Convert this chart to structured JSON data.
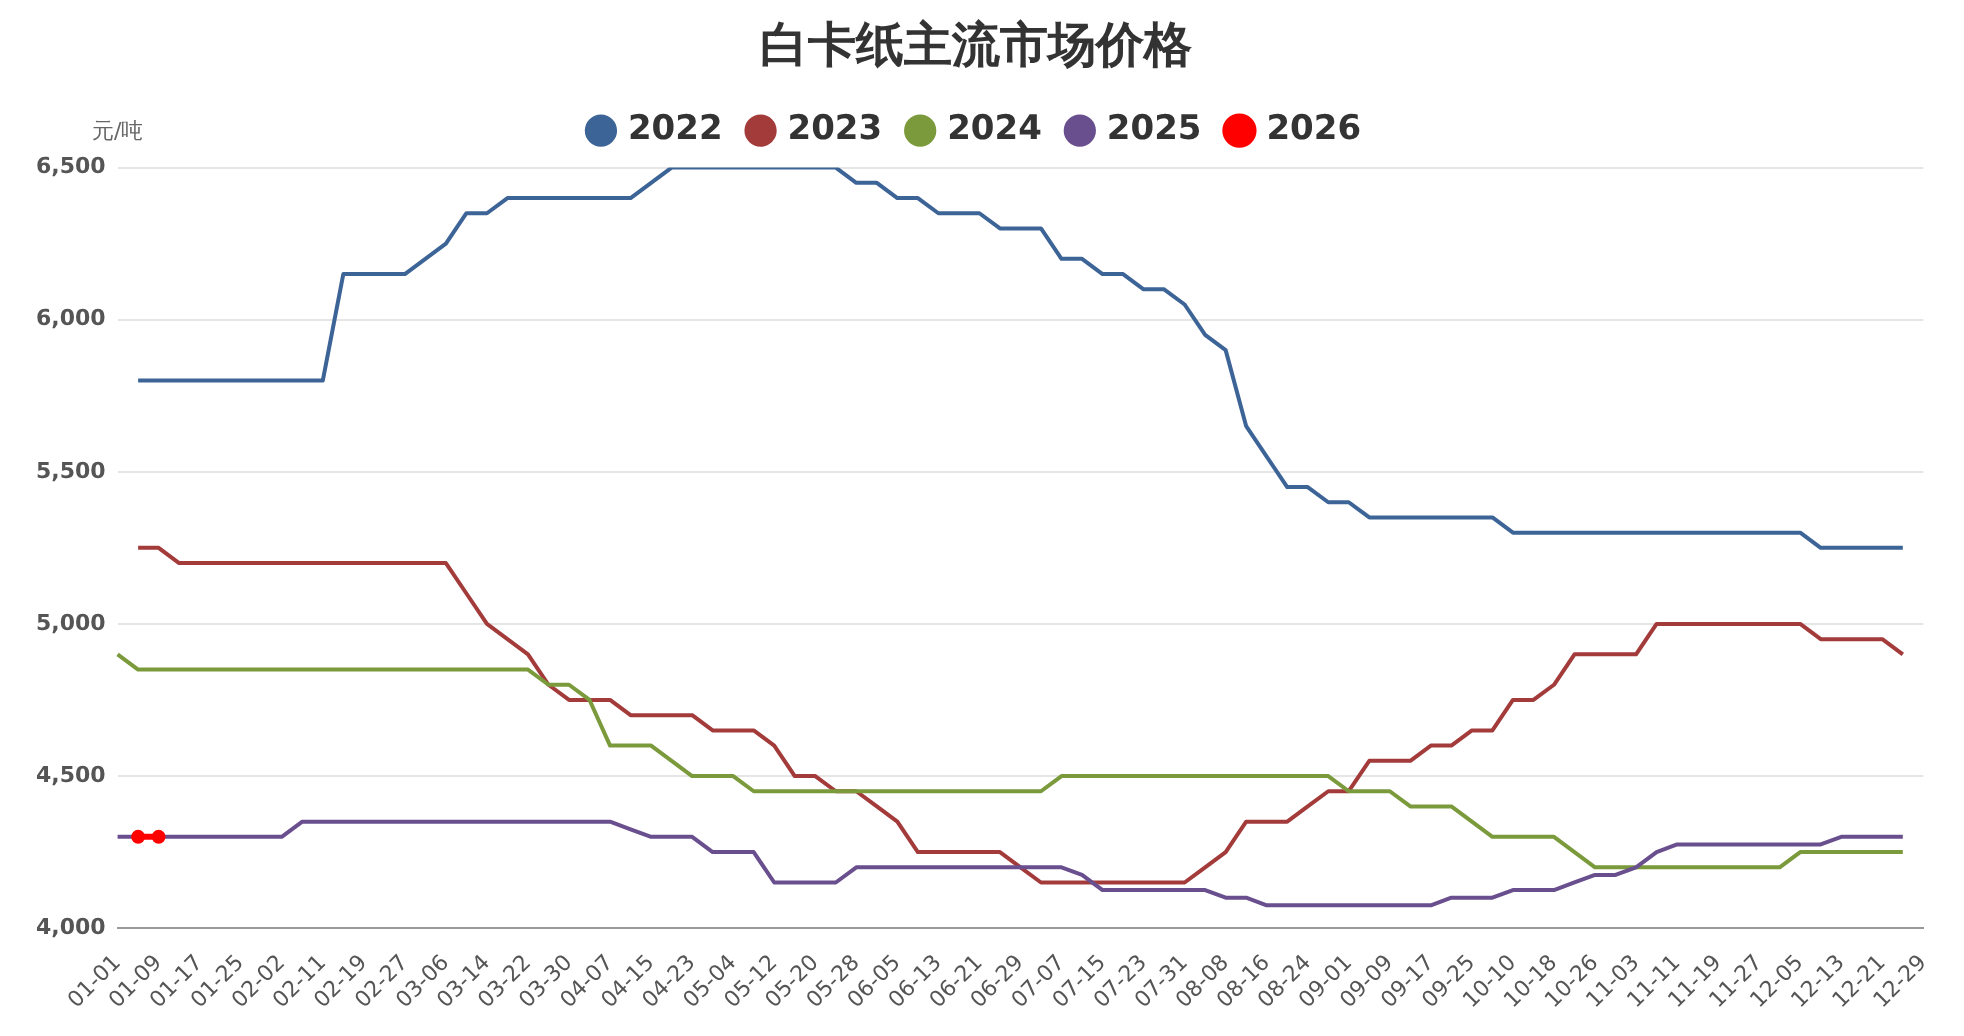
{
  "chart_data": {
    "type": "line",
    "title": "白卡纸主流市场价格",
    "ylabel": "元/吨",
    "categories": [
      "01-01",
      null,
      "01-09",
      null,
      "01-17",
      null,
      "01-25",
      null,
      "02-02",
      null,
      "02-11",
      null,
      "02-19",
      null,
      "02-27",
      null,
      "03-06",
      null,
      "03-14",
      null,
      "03-22",
      null,
      "03-30",
      null,
      "04-07",
      null,
      "04-15",
      null,
      "04-23",
      null,
      "05-04",
      null,
      "05-12",
      null,
      "05-20",
      null,
      "05-28",
      null,
      "06-05",
      null,
      "06-13",
      null,
      "06-21",
      null,
      "06-29",
      null,
      "07-07",
      null,
      "07-15",
      null,
      "07-23",
      null,
      "07-31",
      null,
      "08-08",
      null,
      "08-16",
      null,
      "08-24",
      null,
      "09-01",
      null,
      "09-09",
      null,
      "09-17",
      null,
      "09-25",
      null,
      "10-10",
      null,
      "10-18",
      null,
      "10-26",
      null,
      "11-03",
      null,
      "11-11",
      null,
      "11-19",
      null,
      "11-27",
      null,
      "12-05",
      null,
      "12-13",
      null,
      "12-21",
      null,
      "12-29"
    ],
    "series": [
      {
        "name": "2022",
        "color": "#3d6496",
        "values": [
          null,
          5800,
          5800,
          5800,
          5800,
          5800,
          5800,
          5800,
          5800,
          5800,
          5800,
          6150,
          6150,
          6150,
          6150,
          6200,
          6250,
          6350,
          6350,
          6400,
          6400,
          6400,
          6400,
          6400,
          6400,
          6400,
          6450,
          6500,
          6500,
          6500,
          6500,
          6500,
          6500,
          6500,
          6500,
          6500,
          6450,
          6450,
          6400,
          6400,
          6350,
          6350,
          6350,
          6300,
          6300,
          6300,
          6200,
          6200,
          6150,
          6150,
          6100,
          6100,
          6050,
          5950,
          5900,
          5650,
          5550,
          5450,
          5450,
          5400,
          5400,
          5350,
          5350,
          5350,
          5350,
          5350,
          5350,
          5350,
          5300,
          5300,
          5300,
          5300,
          5300,
          5300,
          5300,
          5300,
          5300,
          5300,
          5300,
          5300,
          5300,
          5300,
          5300,
          5250,
          5250,
          5250,
          5250,
          5250,
          null
        ]
      },
      {
        "name": "2023",
        "color": "#a33b3b",
        "values": [
          null,
          5250,
          5250,
          5200,
          5200,
          5200,
          5200,
          5200,
          5200,
          5200,
          5200,
          5200,
          5200,
          5200,
          5200,
          5200,
          5200,
          5100,
          5000,
          4950,
          4900,
          4800,
          4750,
          4750,
          4750,
          4700,
          4700,
          4700,
          4700,
          4650,
          4650,
          4650,
          4600,
          4500,
          4500,
          4450,
          4450,
          4400,
          4350,
          4250,
          4250,
          4250,
          4250,
          4250,
          4200,
          4150,
          4150,
          4150,
          4150,
          4150,
          4150,
          4150,
          4150,
          4200,
          4250,
          4350,
          4350,
          4350,
          4400,
          4450,
          4450,
          4550,
          4550,
          4550,
          4600,
          4600,
          4650,
          4650,
          4750,
          4750,
          4800,
          4900,
          4900,
          4900,
          4900,
          5000,
          5000,
          5000,
          5000,
          5000,
          5000,
          5000,
          5000,
          4950,
          4950,
          4950,
          4950,
          4900,
          null
        ]
      },
      {
        "name": "2024",
        "color": "#7a9a3c",
        "values": [
          4900,
          4850,
          4850,
          4850,
          4850,
          4850,
          4850,
          4850,
          4850,
          4850,
          4850,
          4850,
          4850,
          4850,
          4850,
          4850,
          4850,
          4850,
          4850,
          4850,
          4850,
          4800,
          4800,
          4750,
          4600,
          4600,
          4600,
          4550,
          4500,
          4500,
          4500,
          4450,
          4450,
          4450,
          4450,
          4450,
          4450,
          4450,
          4450,
          4450,
          4450,
          4450,
          4450,
          4450,
          4450,
          4450,
          4500,
          4500,
          4500,
          4500,
          4500,
          4500,
          4500,
          4500,
          4500,
          4500,
          4500,
          4500,
          4500,
          4500,
          4450,
          4450,
          4450,
          4400,
          4400,
          4400,
          4350,
          4300,
          4300,
          4300,
          4300,
          4250,
          4200,
          4200,
          4200,
          4200,
          4200,
          4200,
          4200,
          4200,
          4200,
          4200,
          4250,
          4250,
          4250,
          4250,
          4250,
          4250,
          null
        ]
      },
      {
        "name": "2025",
        "color": "#6a4f8f",
        "values": [
          4300,
          4300,
          4300,
          4300,
          4300,
          4300,
          4300,
          4300,
          4300,
          4350,
          4350,
          4350,
          4350,
          4350,
          4350,
          4350,
          4350,
          4350,
          4350,
          4350,
          4350,
          4350,
          4350,
          4350,
          4350,
          4325,
          4300,
          4300,
          4300,
          4250,
          4250,
          4250,
          4150,
          4150,
          4150,
          4150,
          4200,
          4200,
          4200,
          4200,
          4200,
          4200,
          4200,
          4200,
          4200,
          4200,
          4200,
          4175,
          4125,
          4125,
          4125,
          4125,
          4125,
          4125,
          4100,
          4100,
          4075,
          4075,
          4075,
          4075,
          4075,
          4075,
          4075,
          4075,
          4075,
          4100,
          4100,
          4100,
          4125,
          4125,
          4125,
          4150,
          4175,
          4175,
          4200,
          4250,
          4275,
          4275,
          4275,
          4275,
          4275,
          4275,
          4275,
          4275,
          4300,
          4300,
          4300,
          4300,
          null
        ]
      },
      {
        "name": "2026",
        "color": "#ff0000",
        "marker": "circle",
        "values": [
          null,
          4300,
          4300,
          null,
          null,
          null,
          null,
          null,
          null,
          null,
          null,
          null,
          null,
          null,
          null,
          null,
          null,
          null,
          null,
          null,
          null,
          null,
          null,
          null,
          null,
          null,
          null,
          null,
          null,
          null,
          null,
          null,
          null,
          null,
          null,
          null,
          null,
          null,
          null,
          null,
          null,
          null,
          null,
          null,
          null,
          null,
          null,
          null,
          null,
          null,
          null,
          null,
          null,
          null,
          null,
          null,
          null,
          null,
          null,
          null,
          null,
          null,
          null,
          null,
          null,
          null,
          null,
          null,
          null,
          null,
          null,
          null,
          null,
          null,
          null,
          null,
          null,
          null,
          null,
          null,
          null,
          null,
          null,
          null,
          null,
          null,
          null,
          null,
          null
        ]
      }
    ],
    "ylim": [
      4000,
      6500
    ],
    "yticks": [
      {
        "value": 4000,
        "label": "4,000"
      },
      {
        "value": 4500,
        "label": "4,500"
      },
      {
        "value": 5000,
        "label": "5,000"
      },
      {
        "value": 5500,
        "label": "5,500"
      },
      {
        "value": 6000,
        "label": "6,000"
      },
      {
        "value": 6500,
        "label": "6,500"
      }
    ],
    "grid": "y",
    "legend": "top"
  }
}
